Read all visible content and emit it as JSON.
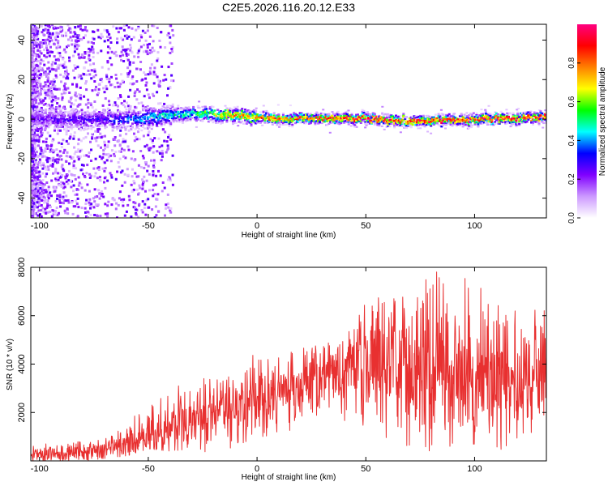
{
  "figure": {
    "title": "C2E5.2026.116.20.12.E33"
  },
  "chart_data": [
    {
      "type": "heatmap",
      "xlabel": "Height of straight line (km)",
      "ylabel": "Frequency (Hz)",
      "xlim": [
        -104,
        133
      ],
      "ylim": [
        -50,
        48
      ],
      "xticks": [
        -100,
        -50,
        0,
        50,
        100
      ],
      "yticks": [
        -40,
        -20,
        0,
        20,
        40
      ],
      "grid": false,
      "colorbar": {
        "label": "Normalized spectral amplitude",
        "range": [
          0,
          1
        ],
        "ticks": [
          0.0,
          0.2,
          0.4,
          0.6,
          0.8
        ],
        "colormap": [
          "#ffffff",
          "#cc99ff",
          "#8000ff",
          "#0000ff",
          "#00ffff",
          "#00ff00",
          "#ffff00",
          "#ff8000",
          "#ff0000",
          "#ff0080"
        ]
      },
      "ridge": {
        "frequency_hz": [
          [
            -104,
            0
          ],
          [
            -80,
            0
          ],
          [
            -60,
            0
          ],
          [
            -40,
            2
          ],
          [
            -25,
            3
          ],
          [
            -15,
            2
          ],
          [
            0,
            1
          ],
          [
            20,
            0
          ],
          [
            50,
            0
          ],
          [
            75,
            -1
          ],
          [
            100,
            0
          ],
          [
            133,
            1
          ]
        ],
        "peak_amplitude": [
          [
            -104,
            0.25
          ],
          [
            -70,
            0.3
          ],
          [
            -50,
            0.45
          ],
          [
            -30,
            0.55
          ],
          [
            -15,
            0.75
          ],
          [
            0,
            0.85
          ],
          [
            20,
            0.9
          ],
          [
            50,
            0.95
          ],
          [
            133,
            0.95
          ]
        ]
      }
    },
    {
      "type": "line",
      "xlabel": "Height of straight line (km)",
      "ylabel": "SNR (10 * v/v)",
      "xlim": [
        -104,
        133
      ],
      "ylim": [
        0,
        8000
      ],
      "xticks": [
        -100,
        -50,
        0,
        50,
        100
      ],
      "yticks": [
        2000,
        4000,
        6000,
        8000
      ],
      "grid": false,
      "series": [
        {
          "color": "#e83030",
          "envelope": {
            "x": [
              -104,
              -90,
              -80,
              -70,
              -60,
              -50,
              -40,
              -30,
              -20,
              -10,
              0,
              10,
              20,
              30,
              40,
              50,
              60,
              70,
              80,
              90,
              100,
              110,
              120,
              133
            ],
            "mean": [
              300,
              320,
              380,
              500,
              700,
              1200,
              1500,
              1700,
              1900,
              2300,
              2600,
              3000,
              3300,
              3500,
              3700,
              3900,
              4000,
              4000,
              3900,
              3800,
              3700,
              3500,
              3400,
              3300
            ],
            "max": [
              700,
              800,
              900,
              1100,
              1400,
              2700,
              3100,
              3500,
              3800,
              4000,
              4500,
              4600,
              4700,
              4900,
              5100,
              6800,
              6700,
              7300,
              8000,
              7600,
              7500,
              7000,
              6500,
              6200
            ],
            "min": [
              0,
              0,
              0,
              100,
              200,
              500,
              400,
              500,
              300,
              600,
              1000,
              900,
              1200,
              1500,
              1400,
              900,
              800,
              600,
              400,
              500,
              700,
              500,
              400,
              1200
            ]
          }
        }
      ]
    }
  ]
}
